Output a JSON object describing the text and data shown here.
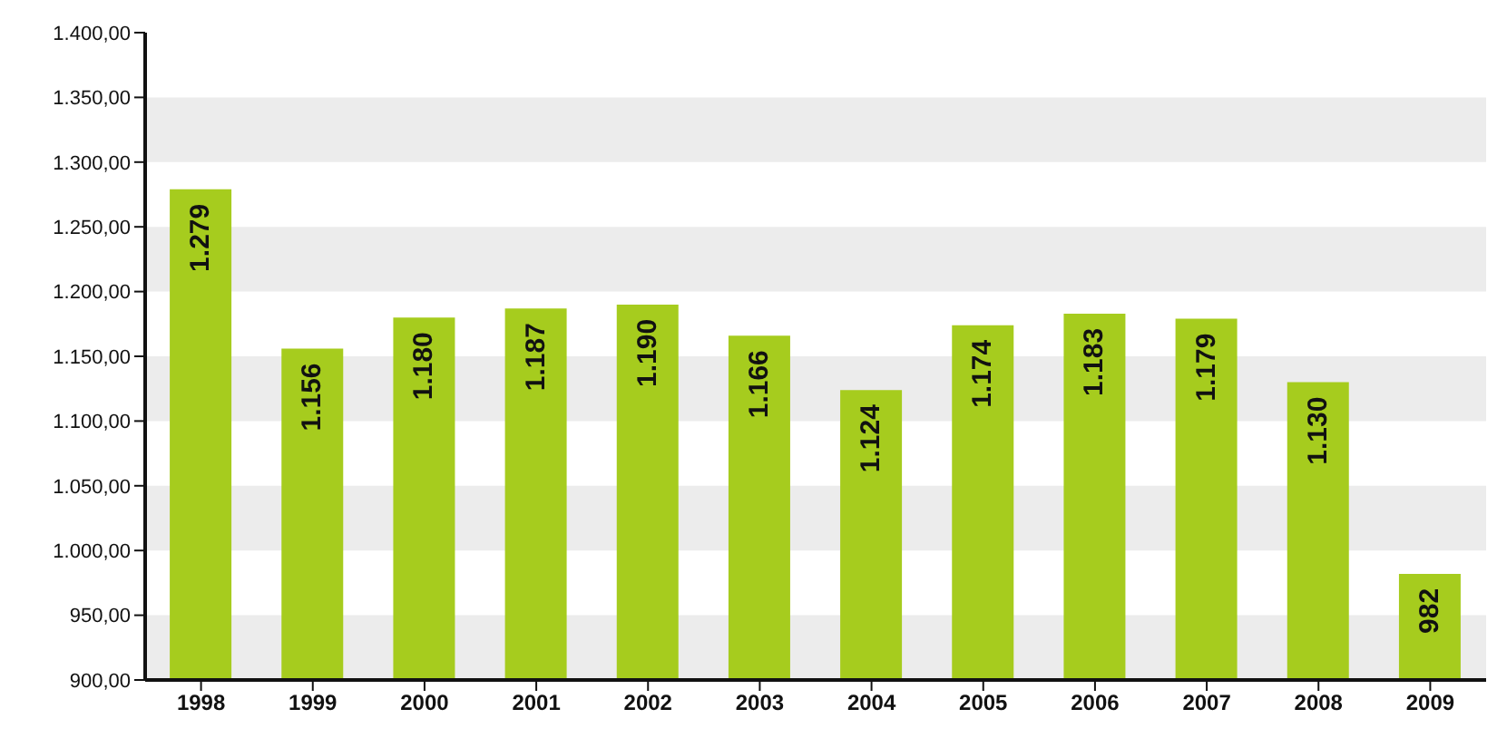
{
  "chart_data": {
    "type": "bar",
    "categories": [
      "1998",
      "1999",
      "2000",
      "2001",
      "2002",
      "2003",
      "2004",
      "2005",
      "2006",
      "2007",
      "2008",
      "2009"
    ],
    "values": [
      1279,
      1156,
      1180,
      1187,
      1190,
      1166,
      1124,
      1174,
      1183,
      1179,
      1130,
      982
    ],
    "value_labels": [
      "1.279",
      "1.156",
      "1.180",
      "1.187",
      "1.190",
      "1.166",
      "1.124",
      "1.174",
      "1.183",
      "1.179",
      "1.130",
      "982"
    ],
    "color": "#a6cc1e",
    "ylim": [
      900,
      1400
    ],
    "yticks": [
      {
        "value": 900,
        "label": "900,00"
      },
      {
        "value": 950,
        "label": "950,00"
      },
      {
        "value": 1000,
        "label": "1.000,00"
      },
      {
        "value": 1050,
        "label": "1.050,00"
      },
      {
        "value": 1100,
        "label": "1.100,00"
      },
      {
        "value": 1150,
        "label": "1.150,00"
      },
      {
        "value": 1200,
        "label": "1.200,00"
      },
      {
        "value": 1250,
        "label": "1.250,00"
      },
      {
        "value": 1300,
        "label": "1.300,00"
      },
      {
        "value": 1350,
        "label": "1.350,00"
      },
      {
        "value": 1400,
        "label": "1.400,00"
      }
    ],
    "bands": [
      {
        "axis": "y",
        "from": 900,
        "to": 950,
        "color": "#ececec"
      },
      {
        "axis": "y",
        "from": 1000,
        "to": 1050,
        "color": "#ececec"
      },
      {
        "axis": "y",
        "from": 1100,
        "to": 1150,
        "color": "#ececec"
      },
      {
        "axis": "y",
        "from": 1200,
        "to": 1250,
        "color": "#ececec"
      },
      {
        "axis": "y",
        "from": 1300,
        "to": 1350,
        "color": "#ececec"
      }
    ]
  }
}
